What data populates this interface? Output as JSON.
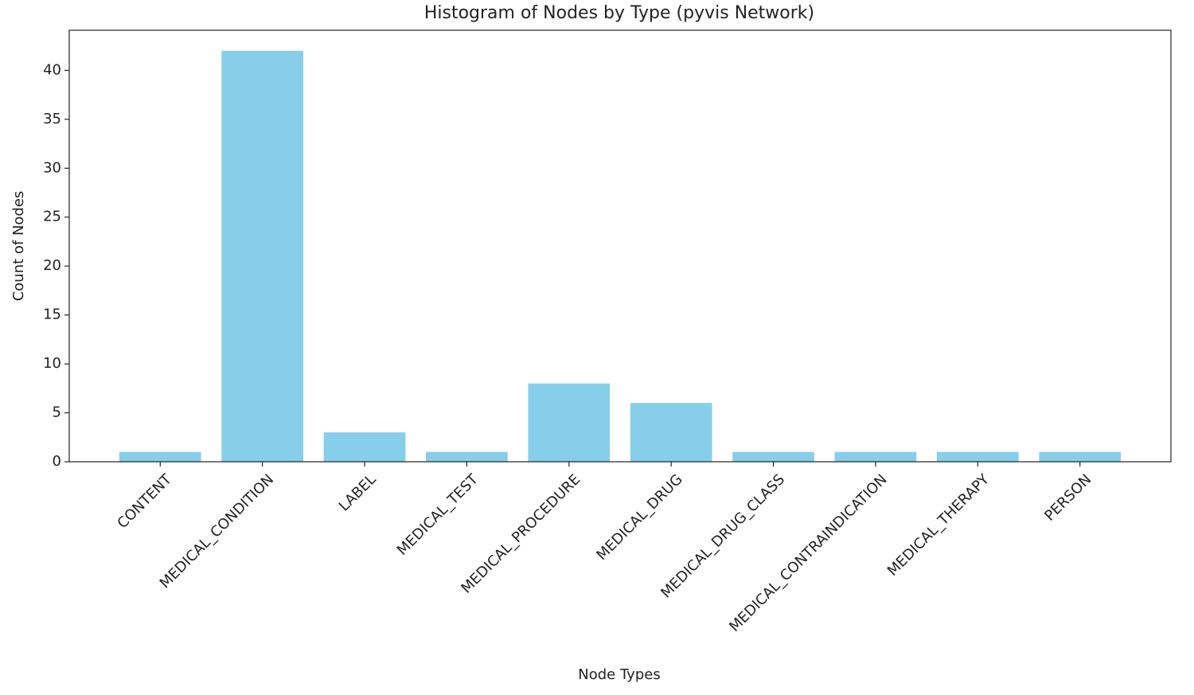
{
  "chart_data": {
    "type": "bar",
    "title": "Histogram of Nodes by Type (pyvis Network)",
    "x_label": "Node Types",
    "y_label": "Count of Nodes",
    "categories": [
      "CONTENT",
      "MEDICAL_CONDITION",
      "LABEL",
      "MEDICAL_TEST",
      "MEDICAL_PROCEDURE",
      "MEDICAL_DRUG",
      "MEDICAL_DRUG_CLASS",
      "MEDICAL_CONTRAINDICATION",
      "MEDICAL_THERAPY",
      "PERSON"
    ],
    "values": [
      1,
      42,
      3,
      1,
      8,
      6,
      1,
      1,
      1,
      1
    ],
    "color": "#87ceeb",
    "ylim": [
      0,
      44.1
    ],
    "yticks": [
      0,
      5,
      10,
      15,
      20,
      25,
      30,
      35,
      40
    ],
    "grid": false
  }
}
